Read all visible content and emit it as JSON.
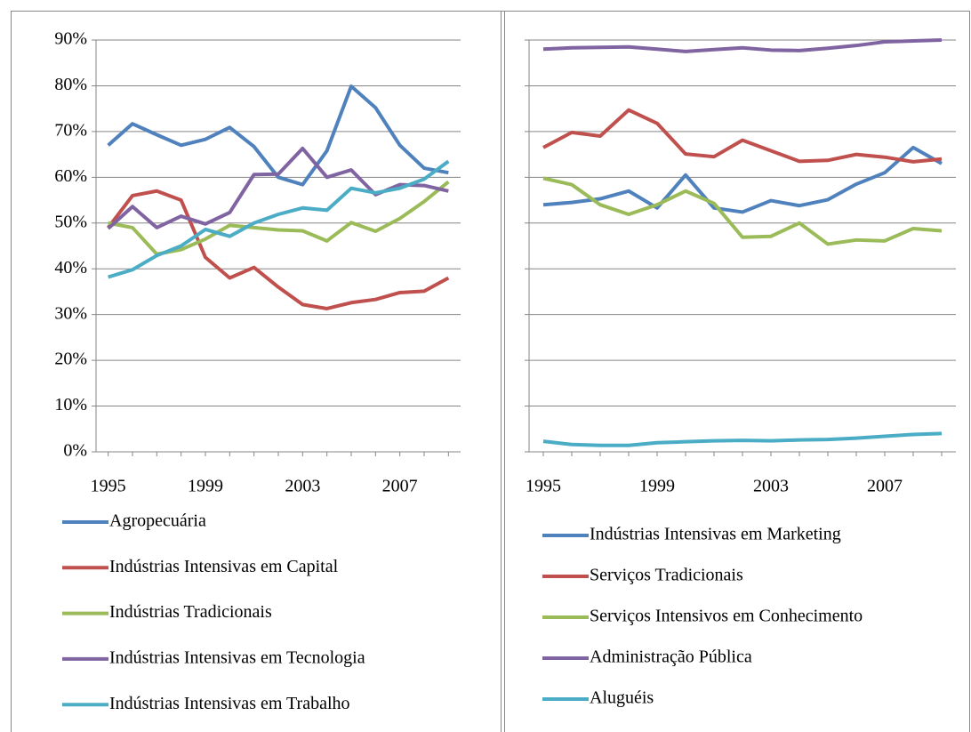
{
  "chart_data": [
    {
      "type": "line",
      "x": [
        1995,
        1996,
        1997,
        1998,
        1999,
        2000,
        2001,
        2002,
        2003,
        2004,
        2005,
        2006,
        2007,
        2008,
        2009
      ],
      "xlim": [
        1994.5,
        2009.5
      ],
      "xticks": [
        1995,
        1999,
        2003,
        2007
      ],
      "ylim": [
        0,
        90
      ],
      "yticks": [
        {
          "value": 0,
          "label": "0%"
        },
        {
          "value": 10,
          "label": "10%"
        },
        {
          "value": 20,
          "label": "20%"
        },
        {
          "value": 30,
          "label": "30%"
        },
        {
          "value": 40,
          "label": "40%"
        },
        {
          "value": 50,
          "label": "50%"
        },
        {
          "value": 60,
          "label": "60%"
        },
        {
          "value": 70,
          "label": "70%"
        },
        {
          "value": 80,
          "label": "80%"
        },
        {
          "value": 90,
          "label": "90%"
        }
      ],
      "grid": true,
      "legend": "bottom",
      "series": [
        {
          "name": "Agropecuária",
          "color": "#4f81bd",
          "values": [
            67,
            71.7,
            69.3,
            67,
            68.3,
            70.9,
            66.7,
            60,
            58.4,
            65.8,
            79.9,
            75.2,
            67,
            62,
            61
          ]
        },
        {
          "name": "Indústrias Intensivas em Capital",
          "color": "#c0504d",
          "values": [
            49,
            56,
            57,
            55,
            42.5,
            38,
            40.3,
            36,
            32.2,
            31.3,
            32.6,
            33.3,
            34.8,
            35.1,
            38
          ]
        },
        {
          "name": "Indústrias Tradicionais",
          "color": "#9bbb59",
          "values": [
            50,
            49,
            43.2,
            44.2,
            46.5,
            49.5,
            49,
            48.5,
            48.3,
            46.1,
            50.1,
            48.2,
            51,
            54.7,
            59
          ]
        },
        {
          "name": "Indústrias Intensivas em Tecnologia",
          "color": "#8064a2",
          "values": [
            48.8,
            53.6,
            49,
            51.5,
            49.8,
            52.3,
            60.6,
            60.7,
            66.3,
            60,
            61.6,
            56.2,
            58.4,
            58.2,
            57
          ]
        },
        {
          "name": "Indústrias Intensivas em Trabalho",
          "color": "#4bacc6",
          "values": [
            38.2,
            39.8,
            42.9,
            45,
            48.6,
            47.1,
            50,
            51.9,
            53.3,
            52.8,
            57.6,
            56.6,
            57.6,
            59.6,
            63.5
          ]
        }
      ]
    },
    {
      "type": "line",
      "x": [
        1995,
        1996,
        1997,
        1998,
        1999,
        2000,
        2001,
        2002,
        2003,
        2004,
        2005,
        2006,
        2007,
        2008,
        2009
      ],
      "xlim": [
        1994.5,
        2009.5
      ],
      "xticks": [
        1995,
        1999,
        2003,
        2007
      ],
      "ylim": [
        0,
        90
      ],
      "yticks": [
        0,
        10,
        20,
        30,
        40,
        50,
        60,
        70,
        80,
        90
      ],
      "grid": true,
      "legend": "bottom",
      "series": [
        {
          "name": "Indústrias Intensivas em Marketing",
          "color": "#4f81bd",
          "values": [
            54,
            54.5,
            55.3,
            57,
            53.3,
            60.5,
            53.3,
            52.4,
            54.9,
            53.8,
            55.1,
            58.5,
            61,
            66.5,
            63
          ]
        },
        {
          "name": "Serviços Tradicionais",
          "color": "#c0504d",
          "values": [
            66.5,
            69.8,
            69,
            74.7,
            71.8,
            65.1,
            64.5,
            68.1,
            65.8,
            63.5,
            63.7,
            65,
            64.4,
            63.4,
            64
          ]
        },
        {
          "name": "Serviços Intensivos em Conhecimento",
          "color": "#9bbb59",
          "values": [
            59.8,
            58.4,
            54,
            51.9,
            54,
            57,
            54.3,
            46.9,
            47.1,
            50,
            45.4,
            46.3,
            46.1,
            48.8,
            48.3
          ]
        },
        {
          "name": "Administração Pública",
          "color": "#8064a2",
          "values": [
            88,
            88.3,
            88.4,
            88.5,
            88,
            87.5,
            87.9,
            88.3,
            87.8,
            87.7,
            88.2,
            88.8,
            89.6,
            89.8,
            90
          ]
        },
        {
          "name": "Aluguéis",
          "color": "#4bacc6",
          "values": [
            2.3,
            1.6,
            1.4,
            1.4,
            2,
            2.2,
            2.4,
            2.5,
            2.4,
            2.6,
            2.7,
            3,
            3.4,
            3.8,
            4
          ]
        }
      ]
    }
  ]
}
